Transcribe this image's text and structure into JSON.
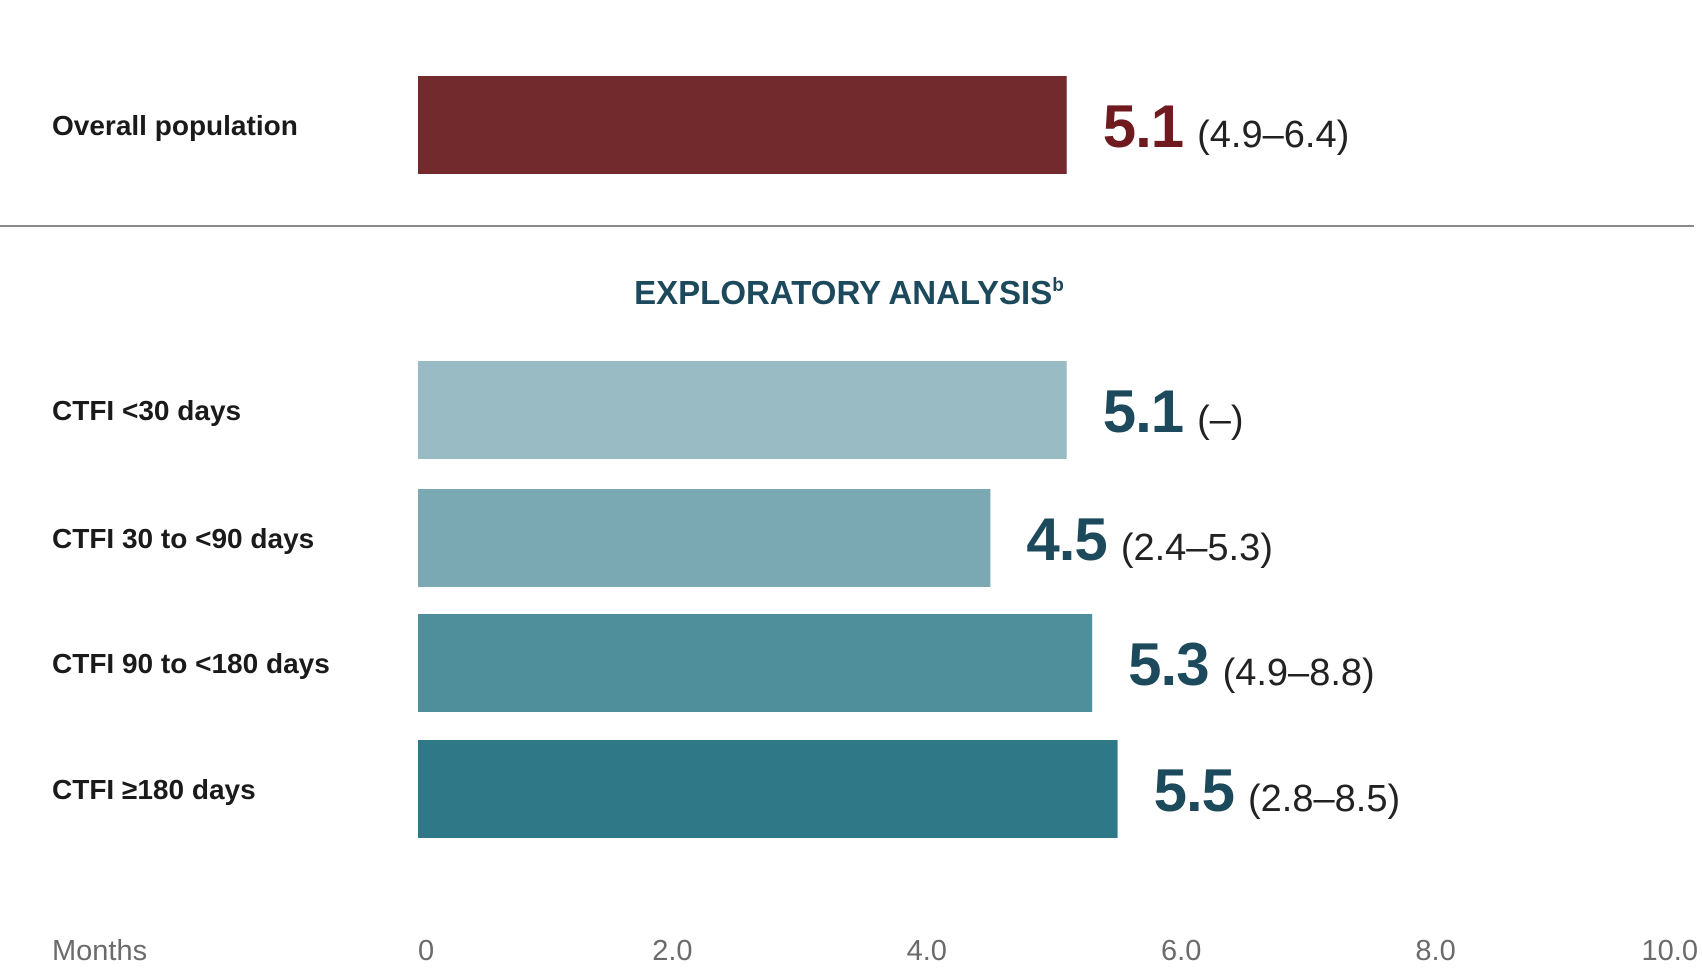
{
  "chart_data": {
    "type": "bar",
    "orientation": "horizontal",
    "xlabel": "Months",
    "xlim": [
      0,
      10
    ],
    "xticks": [
      "0",
      "2.0",
      "4.0",
      "6.0",
      "8.0",
      "10.0"
    ],
    "xtick_values": [
      0,
      2,
      4,
      6,
      8,
      10
    ],
    "grid": false,
    "legend": "none",
    "primary": {
      "category": "Overall population",
      "value": 5.1,
      "value_label": "5.1",
      "ci_label": "(4.9–6.4)",
      "color": "#722a2c",
      "label_color": "#6e1a1f"
    },
    "section_title": "EXPLORATORY ANALYSIS",
    "section_title_sup": "b",
    "exploratory": [
      {
        "category": "CTFI <30 days",
        "value": 5.1,
        "value_label": "5.1",
        "ci_label": "(–)",
        "color": "#99bcc4"
      },
      {
        "category": "CTFI 30 to <90 days",
        "value": 4.5,
        "value_label": "4.5",
        "ci_label": "(2.4–5.3)",
        "color": "#7aa9b4"
      },
      {
        "category": "CTFI 90 to <180 days",
        "value": 5.3,
        "value_label": "5.3",
        "ci_label": "(4.9–8.8)",
        "color": "#4f8e9b"
      },
      {
        "category": "CTFI ≥180 days",
        "value": 5.5,
        "value_label": "5.5",
        "ci_label": "(2.8–8.5)",
        "color": "#2f7888"
      }
    ],
    "exploratory_label_color": "#1c4a5c"
  }
}
